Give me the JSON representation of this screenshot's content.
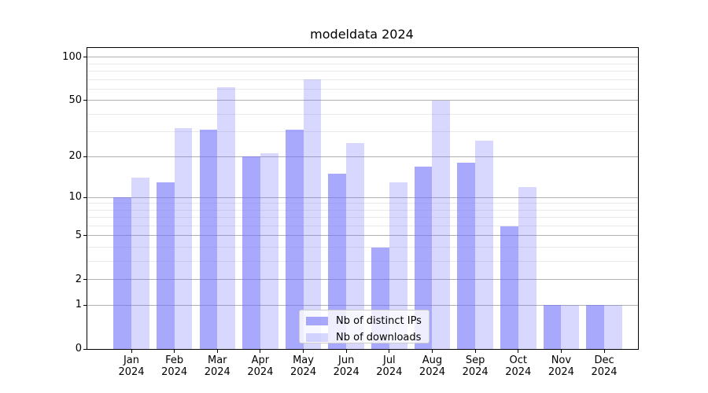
{
  "chart_data": {
    "type": "bar",
    "title": "modeldata 2024",
    "categories": [
      "Jan",
      "Feb",
      "Mar",
      "Apr",
      "May",
      "Jun",
      "Jul",
      "Aug",
      "Sep",
      "Oct",
      "Nov",
      "Dec"
    ],
    "year_label": "2024",
    "series": [
      {
        "name": "Nb of distinct IPs",
        "color": "#6e6efa",
        "alpha": 0.6,
        "values": [
          10,
          13,
          31,
          20,
          31,
          15,
          4,
          17,
          18,
          6,
          1,
          1
        ]
      },
      {
        "name": "Nb of downloads",
        "color": "#6e6efa",
        "alpha": 0.27,
        "values": [
          14,
          32,
          62,
          21,
          70,
          25,
          13,
          50,
          26,
          12,
          1,
          1
        ]
      }
    ],
    "yscale": "log1p",
    "ylim": [
      0,
      116
    ],
    "yticks": [
      0,
      1,
      2,
      5,
      10,
      20,
      50,
      100
    ],
    "minor_gridlines": [
      3,
      4,
      6,
      7,
      8,
      9,
      30,
      40,
      60,
      70,
      80,
      90
    ],
    "grid": true,
    "legend_position": "lower center",
    "colors": {
      "major_grid": "#b0b0b0",
      "minor_grid": "#eaeaea",
      "axis": "#000000"
    }
  }
}
